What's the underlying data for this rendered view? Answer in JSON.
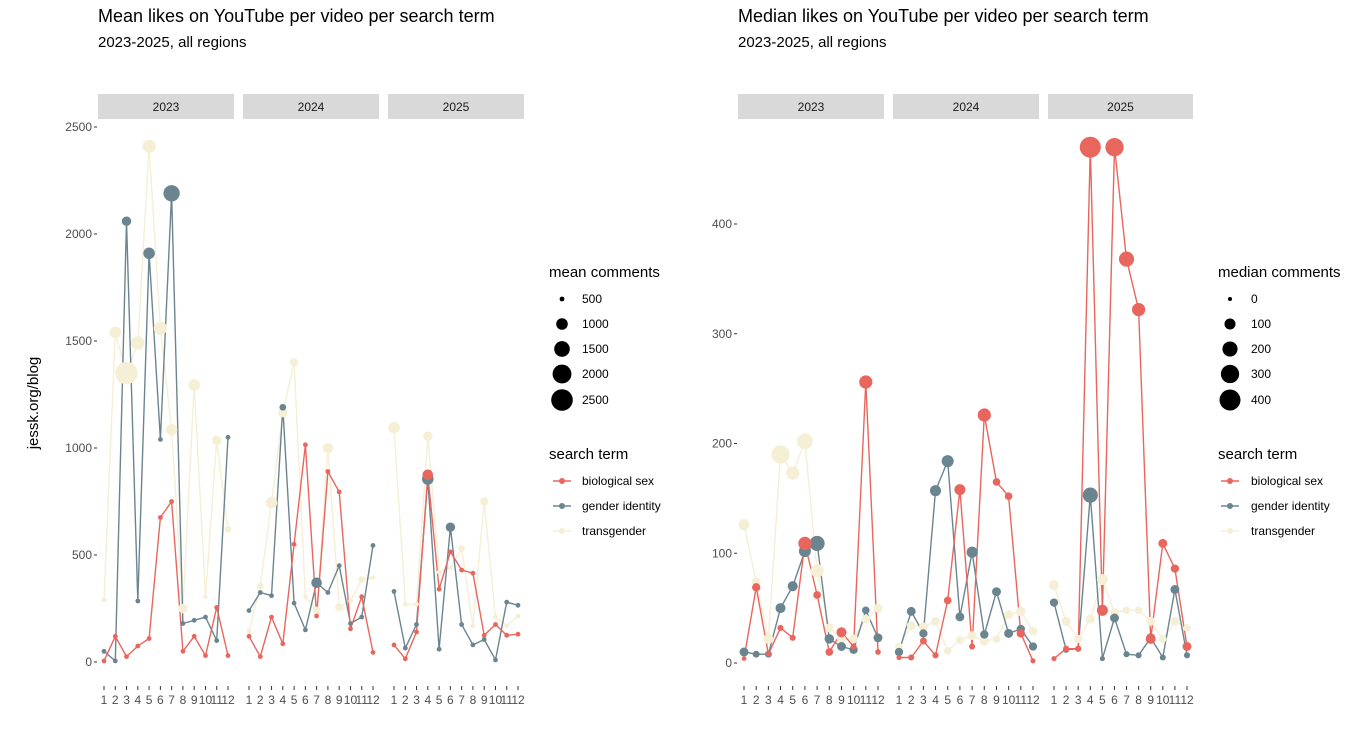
{
  "y_axis_label": "jessk.org/blog",
  "colors": {
    "biological sex": "#e8665d",
    "gender identity": "#6b8590",
    "transgender": "#f5efd6"
  },
  "chart_data": [
    {
      "type": "line",
      "title": "Mean likes on YouTube per video per search term",
      "subtitle": "2023-2025, all regions",
      "facets": [
        "2023",
        "2024",
        "2025"
      ],
      "x_ticks": [
        "1",
        "2",
        "3",
        "4",
        "5",
        "6",
        "7",
        "8",
        "9",
        "10",
        "11",
        "12"
      ],
      "y_ticks": [
        0,
        500,
        1000,
        1500,
        2000,
        2500
      ],
      "y_tick_labels": [
        "0",
        "500",
        "1000",
        "1500",
        "2000",
        "2500"
      ],
      "ylim": [
        -90,
        2570
      ],
      "size_legend": {
        "title": "mean comments",
        "values": [
          500,
          1000,
          1500,
          2000,
          2500
        ],
        "labels": [
          "500",
          "1000",
          "1500",
          "2000",
          "2500"
        ]
      },
      "color_legend": {
        "title": "search term",
        "entries": [
          "biological sex",
          "gender identity",
          "transgender"
        ]
      },
      "series": [
        {
          "name": "biological sex",
          "values": [
            [
              5,
              120,
              25,
              75,
              110,
              675,
              750,
              50,
              120,
              30,
              255,
              30
            ],
            [
              120,
              25,
              210,
              85,
              550,
              1015,
              215,
              890,
              795,
              155,
              305,
              45
            ],
            [
              80,
              15,
              140,
              875,
              340,
              515,
              430,
              415,
              125,
              175,
              125,
              130
            ]
          ],
          "sizes": [
            [
              30,
              60,
              30,
              60,
              60,
              400,
              300,
              60,
              200,
              30,
              200,
              30
            ],
            [
              100,
              30,
              300,
              200,
              400,
              300,
              100,
              350,
              300,
              100,
              300,
              30
            ],
            [
              100,
              50,
              100,
              900,
              300,
              400,
              200,
              200,
              100,
              100,
              100,
              100
            ]
          ]
        },
        {
          "name": "gender identity",
          "values": [
            [
              50,
              5,
              2060,
              285,
              1910,
              1040,
              2190,
              180,
              195,
              210,
              100,
              1050
            ],
            [
              240,
              325,
              310,
              1190,
              275,
              150,
              370,
              325,
              450,
              180,
              210,
              545
            ],
            [
              330,
              65,
              175,
              855,
              60,
              630,
              175,
              80,
              105,
              10,
              280,
              265
            ]
          ],
          "sizes": [
            [
              100,
              30,
              800,
              400,
              1000,
              500,
              1600,
              200,
              200,
              100,
              100,
              500
            ],
            [
              100,
              500,
              400,
              600,
              400,
              100,
              900,
              400,
              400,
              200,
              200,
              200
            ],
            [
              300,
              100,
              100,
              1000,
              30,
              800,
              200,
              100,
              100,
              30,
              200,
              100
            ]
          ]
        },
        {
          "name": "transgender",
          "values": [
            [
              290,
              1540,
              1350,
              1490,
              2410,
              1560,
              1085,
              250,
              1295,
              305,
              1035,
              620
            ],
            [
              145,
              355,
              745,
              1165,
              1400,
              305,
              240,
              1000,
              255,
              285,
              385,
              395
            ],
            [
              1095,
              270,
              270,
              1055,
              420,
              440,
              530,
              170,
              750,
              210,
              170,
              215
            ]
          ],
          "sizes": [
            [
              300,
              1000,
              2700,
              1200,
              1200,
              1200,
              1000,
              800,
              1000,
              500,
              800,
              600
            ],
            [
              300,
              600,
              1000,
              800,
              700,
              300,
              700,
              900,
              700,
              500,
              600,
              500
            ],
            [
              1000,
              500,
              500,
              800,
              500,
              400,
              600,
              400,
              700,
              400,
              400,
              500
            ]
          ]
        }
      ]
    },
    {
      "type": "line",
      "title": "Median likes on YouTube per video per search term",
      "subtitle": "2023-2025, all regions",
      "facets": [
        "2023",
        "2024",
        "2025"
      ],
      "x_ticks": [
        "1",
        "2",
        "3",
        "4",
        "5",
        "6",
        "7",
        "8",
        "9",
        "10",
        "11",
        "12"
      ],
      "y_ticks": [
        0,
        100,
        200,
        300,
        400
      ],
      "y_tick_labels": [
        "0",
        "100",
        "200",
        "300",
        "400"
      ],
      "ylim": [
        -18,
        486
      ],
      "size_legend": {
        "title": "median comments",
        "values": [
          0,
          100,
          200,
          300,
          400
        ],
        "labels": [
          "0",
          "100",
          "200",
          "300",
          "400"
        ]
      },
      "color_legend": {
        "title": "search term",
        "entries": [
          "biological sex",
          "gender identity",
          "transgender"
        ]
      },
      "series": [
        {
          "name": "biological sex",
          "values": [
            [
              4,
              69,
              8,
              32,
              23,
              109,
              62,
              10,
              28,
              15,
              256,
              10
            ],
            [
              5,
              5,
              20,
              7,
              57,
              158,
              15,
              226,
              165,
              152,
              27,
              2
            ],
            [
              4,
              13,
              13,
              470,
              48,
              470,
              368,
              322,
              22,
              109,
              86,
              15
            ]
          ],
          "sizes": [
            [
              5,
              50,
              10,
              20,
              20,
              150,
              40,
              40,
              80,
              20,
              150,
              15
            ],
            [
              10,
              20,
              30,
              20,
              40,
              100,
              20,
              150,
              40,
              40,
              50,
              10
            ],
            [
              10,
              20,
              20,
              400,
              100,
              300,
              200,
              150,
              80,
              60,
              50,
              60
            ]
          ]
        },
        {
          "name": "gender identity",
          "values": [
            [
              10,
              8,
              8,
              50,
              70,
              102,
              109,
              22,
              15,
              12,
              48,
              23
            ],
            [
              10,
              47,
              27,
              157,
              184,
              42,
              101,
              26,
              65,
              27,
              31,
              15
            ],
            [
              55,
              12,
              13,
              153,
              4,
              41,
              8,
              7,
              23,
              5,
              67,
              7
            ]
          ],
          "sizes": [
            [
              60,
              30,
              30,
              80,
              80,
              120,
              200,
              70,
              60,
              50,
              40,
              60
            ],
            [
              50,
              60,
              50,
              100,
              120,
              60,
              100,
              50,
              60,
              60,
              50,
              50
            ],
            [
              50,
              20,
              20,
              200,
              10,
              60,
              20,
              20,
              60,
              20,
              60,
              20
            ]
          ]
        },
        {
          "name": "transgender",
          "values": [
            [
              126,
              74,
              22,
              190,
              173,
              202,
              84,
              32,
              22,
              22,
              40,
              50
            ],
            [
              15,
              34,
              33,
              38,
              11,
              21,
              25,
              20,
              22,
              44,
              47,
              29
            ],
            [
              71,
              38,
              22,
              40,
              76,
              46,
              48,
              48,
              38,
              22,
              38,
              32
            ]
          ],
          "sizes": [
            [
              100,
              60,
              80,
              300,
              150,
              220,
              150,
              60,
              60,
              60,
              60,
              60
            ],
            [
              40,
              60,
              60,
              60,
              40,
              40,
              60,
              60,
              40,
              60,
              70,
              50
            ],
            [
              80,
              60,
              50,
              60,
              100,
              60,
              40,
              40,
              60,
              40,
              60,
              40
            ]
          ]
        }
      ]
    }
  ]
}
